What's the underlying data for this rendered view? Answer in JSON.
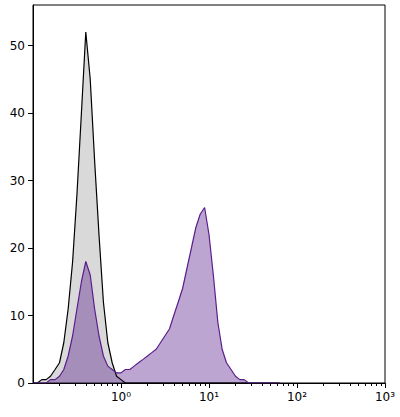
{
  "chart_data": {
    "type": "area",
    "log": "x",
    "grid": false,
    "x": [
      0.1,
      0.112,
      0.126,
      0.141,
      0.158,
      0.178,
      0.2,
      0.224,
      0.251,
      0.282,
      0.316,
      0.355,
      0.398,
      0.447,
      0.501,
      0.562,
      0.631,
      0.708,
      0.794,
      0.891,
      1,
      1.12,
      1.26,
      1.41,
      1.58,
      1.78,
      2,
      2.24,
      2.51,
      2.82,
      3.16,
      3.55,
      3.98,
      4.47,
      5.01,
      5.62,
      6.31,
      7.08,
      7.94,
      8.91,
      10,
      11.2,
      12.6,
      14.1,
      15.8,
      17.8,
      20,
      22.4,
      25.1,
      28.2,
      31.6,
      35.5,
      39.8,
      44.7,
      50.1,
      56.2,
      63.1
    ],
    "series": [
      {
        "color": "#000000",
        "values": [
          0,
          0,
          0.5,
          0.5,
          1,
          2,
          3,
          6,
          11,
          18,
          28,
          40,
          52,
          45,
          33,
          22,
          12,
          6,
          3,
          1,
          0.5,
          0,
          0,
          0,
          0,
          0,
          0,
          0,
          0,
          0,
          0,
          0,
          0,
          0,
          0,
          0,
          0,
          0,
          0,
          0,
          0,
          0,
          0,
          0,
          0,
          0,
          0,
          0,
          0,
          0,
          0,
          0,
          0,
          0,
          0,
          0,
          0
        ]
      },
      {
        "color": "#5a1d8c",
        "values": [
          0,
          0,
          0,
          0,
          0.5,
          0.5,
          1,
          2,
          4,
          7,
          11,
          15,
          18,
          16,
          11,
          7,
          4,
          2.5,
          2,
          1.5,
          1.5,
          2,
          2,
          2.5,
          3,
          3.5,
          4,
          4.5,
          5,
          6,
          7,
          8,
          10,
          12,
          14,
          17,
          20,
          23,
          25,
          26,
          22,
          16,
          9,
          5,
          3,
          2,
          1,
          0.5,
          0.5,
          0,
          0,
          0,
          0,
          0,
          0,
          0,
          0
        ]
      }
    ],
    "xlim": [
      0.1,
      1000
    ],
    "xticks": [
      {
        "value": 1,
        "label": "10⁰"
      },
      {
        "value": 10,
        "label": "10¹"
      },
      {
        "value": 100,
        "label": "10²"
      },
      {
        "value": 1000,
        "label": "10³"
      }
    ],
    "ylim": [
      0,
      56
    ],
    "yticks": [
      0,
      10,
      20,
      30,
      40,
      50
    ]
  }
}
